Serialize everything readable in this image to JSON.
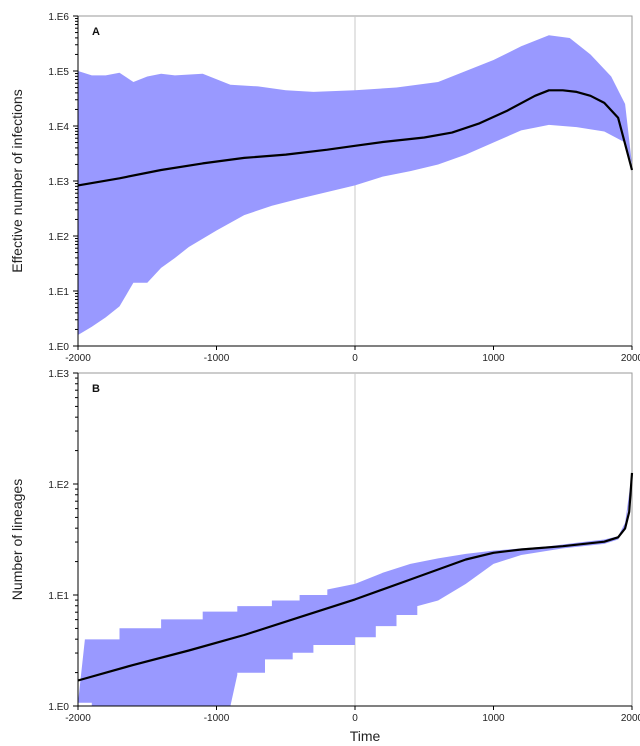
{
  "chart_data": [
    {
      "type": "area",
      "panel_label": "A",
      "title": "",
      "xlabel": "",
      "ylabel": "Effective number of infections",
      "xlim": [
        -2000,
        2000
      ],
      "ylim_log10": [
        0,
        6
      ],
      "y_scale": "log",
      "x_ticks": [
        -2000,
        -1000,
        0,
        1000,
        2000
      ],
      "x_tick_labels": [
        "-2000",
        "-1000",
        "0",
        "1000",
        "2000"
      ],
      "y_ticks_log10": [
        0,
        1,
        2,
        3,
        4,
        5,
        6
      ],
      "y_tick_labels": [
        "1.E0",
        "1.E1",
        "1.E2",
        "1.E3",
        "1.E4",
        "1.E5",
        "1.E6"
      ],
      "zero_line_x": 0,
      "colors": {
        "band": "#9999ff",
        "median": "#000000",
        "zero_line": "#c8c8c8"
      },
      "series": [
        {
          "role": "upper_bound",
          "x": [
            -2000,
            -1900,
            -1800,
            -1700,
            -1600,
            -1500,
            -1400,
            -1300,
            -1100,
            -900,
            -700,
            -500,
            -300,
            0,
            300,
            600,
            800,
            1000,
            1200,
            1400,
            1550,
            1700,
            1850,
            1950,
            2000
          ],
          "y_log10": [
            5.0,
            4.92,
            4.92,
            4.97,
            4.8,
            4.9,
            4.95,
            4.92,
            4.95,
            4.75,
            4.72,
            4.65,
            4.62,
            4.65,
            4.7,
            4.8,
            5.0,
            5.2,
            5.45,
            5.65,
            5.6,
            5.3,
            4.9,
            4.4,
            3.3
          ]
        },
        {
          "role": "median",
          "x": [
            -2000,
            -1700,
            -1400,
            -1100,
            -800,
            -500,
            -200,
            0,
            200,
            500,
            700,
            900,
            1100,
            1300,
            1400,
            1500,
            1600,
            1700,
            1800,
            1900,
            2000
          ],
          "y_log10": [
            2.92,
            3.05,
            3.2,
            3.32,
            3.42,
            3.48,
            3.57,
            3.64,
            3.71,
            3.79,
            3.88,
            4.05,
            4.28,
            4.55,
            4.65,
            4.65,
            4.62,
            4.55,
            4.42,
            4.15,
            3.2
          ]
        },
        {
          "role": "lower_bound",
          "x": [
            -2000,
            -1900,
            -1800,
            -1700,
            -1600,
            -1500,
            -1400,
            -1300,
            -1200,
            -1000,
            -800,
            -600,
            -400,
            -200,
            0,
            200,
            400,
            600,
            800,
            1000,
            1200,
            1400,
            1600,
            1800,
            1950,
            2000
          ],
          "y_log10": [
            0.2,
            0.35,
            0.52,
            0.72,
            1.15,
            1.15,
            1.42,
            1.6,
            1.8,
            2.1,
            2.38,
            2.55,
            2.68,
            2.8,
            2.92,
            3.08,
            3.18,
            3.3,
            3.48,
            3.7,
            3.92,
            4.02,
            3.98,
            3.9,
            3.7,
            3.3
          ]
        }
      ]
    },
    {
      "type": "area",
      "panel_label": "B",
      "title": "",
      "xlabel": "Time",
      "ylabel": "Number of lineages",
      "xlim": [
        -2000,
        2000
      ],
      "ylim_log10": [
        0,
        3
      ],
      "y_scale": "log",
      "x_ticks": [
        -2000,
        -1000,
        0,
        1000,
        2000
      ],
      "x_tick_labels": [
        "-2000",
        "-1000",
        "0",
        "1000",
        "2000"
      ],
      "y_ticks_log10": [
        0,
        1,
        2,
        3
      ],
      "y_tick_labels": [
        "1.E0",
        "1.E1",
        "1.E2",
        "1.E3"
      ],
      "zero_line_x": 0,
      "colors": {
        "band": "#9999ff",
        "median": "#000000",
        "zero_line": "#c8c8c8"
      },
      "series": [
        {
          "role": "upper_bound",
          "x": [
            -2000,
            -1950,
            -1700,
            -1700,
            -1400,
            -1400,
            -1100,
            -1100,
            -850,
            -850,
            -600,
            -600,
            -400,
            -400,
            -200,
            -200,
            0,
            200,
            400,
            600,
            800,
            1000,
            1200,
            1400,
            1600,
            1800,
            1900,
            1950,
            2000
          ],
          "y_log10": [
            0.03,
            0.6,
            0.6,
            0.7,
            0.7,
            0.78,
            0.78,
            0.85,
            0.85,
            0.9,
            0.9,
            0.95,
            0.95,
            1.0,
            1.0,
            1.05,
            1.1,
            1.2,
            1.28,
            1.33,
            1.37,
            1.4,
            1.42,
            1.44,
            1.47,
            1.5,
            1.53,
            1.65,
            2.1
          ]
        },
        {
          "role": "median",
          "x": [
            -2000,
            -1600,
            -1200,
            -800,
            -400,
            0,
            400,
            800,
            1000,
            1200,
            1500,
            1800,
            1900,
            1950,
            1980,
            2000
          ],
          "y_log10": [
            0.23,
            0.37,
            0.5,
            0.64,
            0.8,
            0.96,
            1.14,
            1.32,
            1.38,
            1.41,
            1.44,
            1.48,
            1.52,
            1.6,
            1.75,
            2.1
          ]
        },
        {
          "role": "lower_bound",
          "x": [
            -2000,
            -1950,
            -1900,
            -1900,
            -900,
            -900,
            -850,
            -850,
            -650,
            -650,
            -450,
            -450,
            -300,
            -300,
            0,
            0,
            150,
            150,
            300,
            300,
            450,
            450,
            600,
            800,
            1000,
            1200,
            1500,
            1800,
            1900,
            1950,
            2000
          ],
          "y_log10": [
            0.03,
            0.03,
            0.03,
            0.0,
            0.0,
            0.0,
            0.28,
            0.3,
            0.3,
            0.42,
            0.42,
            0.48,
            0.48,
            0.55,
            0.55,
            0.62,
            0.62,
            0.72,
            0.72,
            0.82,
            0.82,
            0.9,
            0.95,
            1.1,
            1.28,
            1.36,
            1.42,
            1.46,
            1.5,
            1.6,
            2.0
          ]
        }
      ]
    }
  ]
}
